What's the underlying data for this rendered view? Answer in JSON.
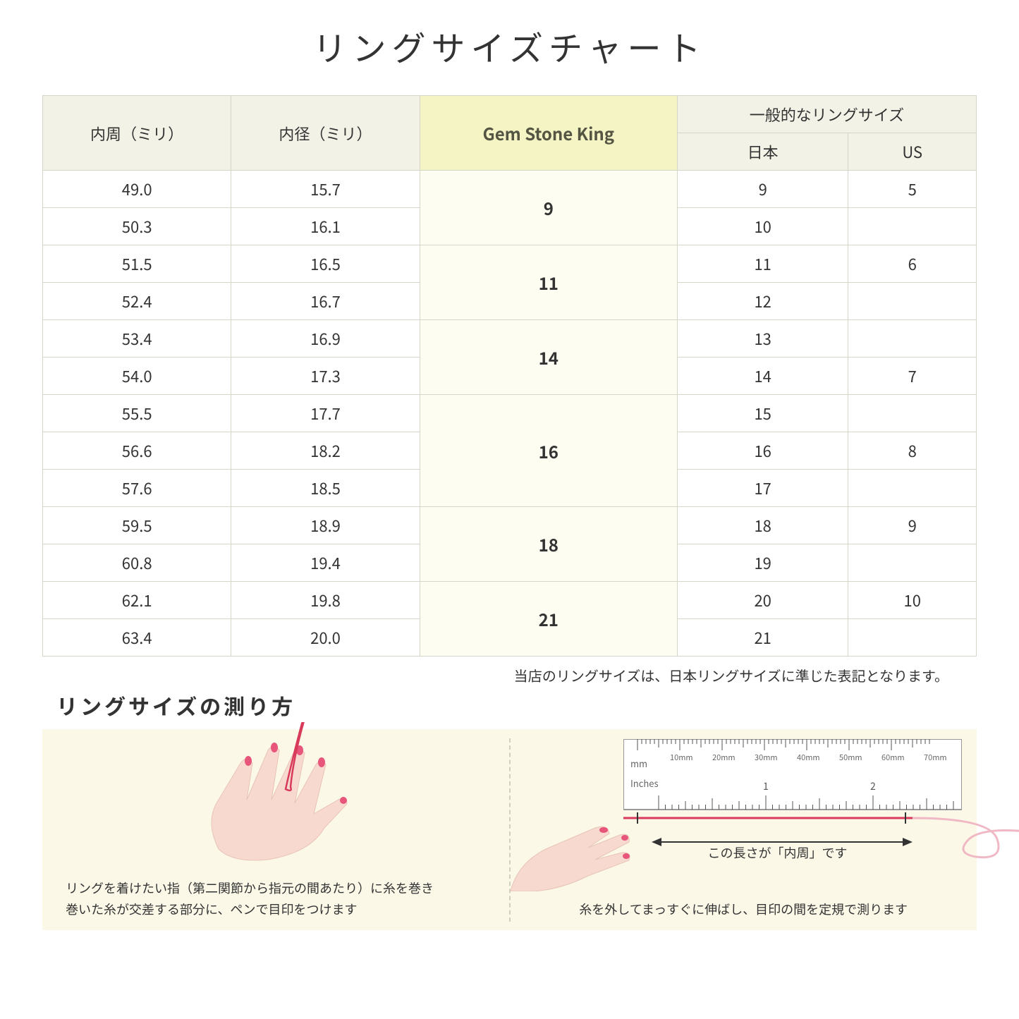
{
  "title": "リングサイズチャート",
  "headers": {
    "circ": "内周（ミリ）",
    "diam": "内径（ミリ）",
    "gsk": "Gem Stone King",
    "general": "一般的なリングサイズ",
    "jp": "日本",
    "us": "US"
  },
  "groups": [
    {
      "gsk": "9",
      "rows": [
        {
          "c": "49.0",
          "d": "15.7",
          "jp": "9",
          "us": "5"
        },
        {
          "c": "50.3",
          "d": "16.1",
          "jp": "10",
          "us": ""
        }
      ]
    },
    {
      "gsk": "11",
      "rows": [
        {
          "c": "51.5",
          "d": "16.5",
          "jp": "11",
          "us": "6"
        },
        {
          "c": "52.4",
          "d": "16.7",
          "jp": "12",
          "us": ""
        }
      ]
    },
    {
      "gsk": "14",
      "rows": [
        {
          "c": "53.4",
          "d": "16.9",
          "jp": "13",
          "us": ""
        },
        {
          "c": "54.0",
          "d": "17.3",
          "jp": "14",
          "us": "7"
        }
      ]
    },
    {
      "gsk": "16",
      "rows": [
        {
          "c": "55.5",
          "d": "17.7",
          "jp": "15",
          "us": ""
        },
        {
          "c": "56.6",
          "d": "18.2",
          "jp": "16",
          "us": "8"
        },
        {
          "c": "57.6",
          "d": "18.5",
          "jp": "17",
          "us": ""
        }
      ]
    },
    {
      "gsk": "18",
      "rows": [
        {
          "c": "59.5",
          "d": "18.9",
          "jp": "18",
          "us": "9"
        },
        {
          "c": "60.8",
          "d": "19.4",
          "jp": "19",
          "us": ""
        }
      ]
    },
    {
      "gsk": "21",
      "rows": [
        {
          "c": "62.1",
          "d": "19.8",
          "jp": "20",
          "us": "10"
        },
        {
          "c": "63.4",
          "d": "20.0",
          "jp": "21",
          "us": ""
        }
      ]
    }
  ],
  "note": "当店のリングサイズは、日本リングサイズに準じた表記となります。",
  "howto_title": "リングサイズの測り方",
  "panel1_caption": "リングを着けたい指（第二関節から指元の間あたり）に糸を巻き\n巻いた糸が交差する部分に、ペンで目印をつけます",
  "panel2_label": "この長さが「内周」です",
  "panel2_caption": "糸を外してまっすぐに伸ばし、目印の間を定規で測ります",
  "ruler": {
    "mm_label": "mm",
    "in_label": "Inches",
    "mm_ticks": [
      "10mm",
      "20mm",
      "30mm",
      "40mm",
      "50mm",
      "60mm",
      "70mm"
    ],
    "in_major": [
      "1",
      "2"
    ]
  },
  "colors": {
    "header_bg": "#f2f2e6",
    "gsk_header_bg": "#f4f4c4",
    "gsk_cell_bg": "#fdfdf2",
    "border": "#d6d6c8",
    "howto_bg": "#fbf8e8",
    "hand": "#f7d9cf",
    "nail": "#e8557a",
    "thread": "#d83a5a",
    "ruler_body": "#ffffff",
    "ruler_stroke": "#888888"
  }
}
